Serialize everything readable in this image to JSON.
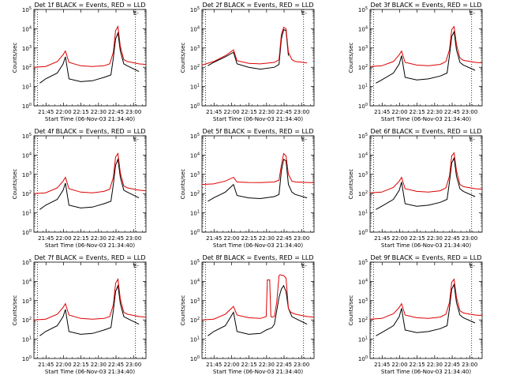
{
  "figure": {
    "panels": [
      {
        "title": "Det 1f BLACK = Events, RED = LLD"
      },
      {
        "title": "Det 2f BLACK = Events, RED = LLD"
      },
      {
        "title": "Det 3f BLACK = Events, RED = LLD"
      },
      {
        "title": "Det 4f BLACK = Events, RED = LLD"
      },
      {
        "title": "Det 5f BLACK = Events, RED = LLD"
      },
      {
        "title": "Det 6f BLACK = Events, RED = LLD"
      },
      {
        "title": "Det 7f BLACK = Events, RED = LLD"
      },
      {
        "title": "Det 8f BLACK = Events, RED = LLD"
      },
      {
        "title": "Det 9f BLACK = Events, RED = LLD"
      }
    ],
    "xlabel": "Start Time (06-Nov-03 21:34:40)",
    "ylabel": "Counts/sec",
    "corner_mark": "E-"
  },
  "chart_data": {
    "type": "line",
    "layout_grid": "3x3",
    "x_tick_labels": [
      "21:45",
      "22:00",
      "22:15",
      "22:30",
      "22:45",
      "23:00"
    ],
    "x_tick_minutes": [
      10.33,
      25.33,
      40.33,
      55.33,
      70.33,
      85.33
    ],
    "x_range_minutes": [
      0,
      96
    ],
    "y_scale": "log",
    "y_range": [
      1,
      100000
    ],
    "y_tick_labels": [
      "10^0",
      "10^1",
      "10^2",
      "10^3",
      "10^4",
      "10^5"
    ],
    "vertical_markers_minutes": [
      3,
      87
    ],
    "colors": {
      "events": "#000000",
      "lld": "#dd0000"
    },
    "panels": [
      {
        "title": "Det 1f BLACK = Events, RED = LLD",
        "lld": {
          "x": [
            0,
            10,
            20,
            25,
            27,
            30,
            40,
            50,
            60,
            65,
            68,
            70,
            72,
            74,
            77,
            80,
            90,
            96
          ],
          "y": [
            100,
            110,
            200,
            450,
            700,
            180,
            120,
            110,
            120,
            150,
            600,
            8000,
            13000,
            1200,
            250,
            200,
            150,
            140
          ]
        },
        "events": {
          "x": [
            0,
            5,
            10,
            20,
            25,
            27,
            30,
            40,
            50,
            60,
            66,
            68,
            70,
            72,
            74,
            77,
            80,
            90,
            96
          ],
          "y": [
            null,
            15,
            25,
            50,
            150,
            350,
            25,
            18,
            20,
            30,
            40,
            300,
            3000,
            6000,
            700,
            150,
            120,
            60,
            null
          ]
        }
      },
      {
        "title": "Det 2f BLACK = Events, RED = LLD",
        "lld": {
          "x": [
            0,
            10,
            20,
            27,
            30,
            40,
            50,
            62,
            66,
            68,
            70,
            72,
            74,
            77,
            80,
            90,
            96
          ],
          "y": [
            130,
            200,
            400,
            800,
            220,
            160,
            150,
            180,
            250,
            5000,
            12000,
            10000,
            600,
            250,
            200,
            170,
            null
          ]
        },
        "events": {
          "x": [
            0,
            5,
            10,
            20,
            27,
            30,
            40,
            50,
            62,
            66,
            68,
            70,
            72,
            74,
            77,
            80,
            90,
            96
          ],
          "y": [
            null,
            120,
            180,
            350,
            600,
            150,
            100,
            80,
            100,
            140,
            3000,
            9000,
            8000,
            400,
            null,
            null,
            null,
            null
          ]
        }
      },
      {
        "title": "Det 3f BLACK = Events, RED = LLD",
        "lld": {
          "x": [
            0,
            10,
            20,
            25,
            27,
            30,
            40,
            50,
            60,
            65,
            68,
            70,
            72,
            74,
            77,
            80,
            90,
            96
          ],
          "y": [
            110,
            120,
            200,
            450,
            700,
            180,
            130,
            120,
            140,
            200,
            800,
            9000,
            13000,
            1500,
            300,
            230,
            180,
            170
          ]
        },
        "events": {
          "x": [
            0,
            5,
            10,
            20,
            25,
            27,
            30,
            40,
            50,
            60,
            66,
            68,
            70,
            72,
            74,
            77,
            80,
            90,
            96
          ],
          "y": [
            null,
            15,
            22,
            50,
            150,
            400,
            30,
            22,
            25,
            35,
            50,
            400,
            4000,
            7000,
            800,
            180,
            130,
            70,
            null
          ]
        }
      },
      {
        "title": "Det 4f BLACK = Events, RED = LLD",
        "lld": {
          "x": [
            0,
            10,
            20,
            25,
            27,
            30,
            40,
            50,
            60,
            65,
            68,
            70,
            72,
            74,
            77,
            80,
            90,
            96
          ],
          "y": [
            100,
            110,
            200,
            450,
            700,
            180,
            120,
            110,
            130,
            170,
            700,
            8000,
            12000,
            1200,
            250,
            200,
            150,
            140
          ]
        },
        "events": {
          "x": [
            0,
            5,
            10,
            20,
            25,
            27,
            30,
            40,
            50,
            60,
            66,
            68,
            70,
            72,
            74,
            77,
            80,
            90,
            96
          ],
          "y": [
            null,
            15,
            25,
            50,
            150,
            350,
            25,
            18,
            20,
            30,
            40,
            300,
            3000,
            6000,
            700,
            150,
            120,
            60,
            null
          ]
        }
      },
      {
        "title": "Det 5f BLACK = Events, RED = LLD",
        "lld": {
          "x": [
            0,
            10,
            20,
            27,
            30,
            40,
            50,
            62,
            66,
            68,
            70,
            72,
            74,
            77,
            80,
            90,
            96
          ],
          "y": [
            300,
            320,
            450,
            700,
            400,
            380,
            370,
            400,
            500,
            3000,
            12000,
            9000,
            1000,
            450,
            400,
            380,
            370
          ]
        },
        "events": {
          "x": [
            0,
            5,
            10,
            20,
            27,
            30,
            40,
            50,
            62,
            66,
            68,
            70,
            72,
            74,
            77,
            80,
            90,
            96
          ],
          "y": [
            null,
            40,
            60,
            120,
            300,
            80,
            60,
            55,
            70,
            90,
            1500,
            6000,
            5000,
            300,
            120,
            90,
            60,
            null
          ]
        }
      },
      {
        "title": "Det 6f BLACK = Events, RED = LLD",
        "lld": {
          "x": [
            0,
            10,
            20,
            25,
            27,
            30,
            40,
            50,
            60,
            65,
            68,
            70,
            72,
            74,
            77,
            80,
            90,
            96
          ],
          "y": [
            110,
            120,
            210,
            450,
            700,
            180,
            130,
            120,
            140,
            200,
            800,
            9000,
            13000,
            1500,
            300,
            230,
            180,
            170
          ]
        },
        "events": {
          "x": [
            0,
            5,
            10,
            20,
            25,
            27,
            30,
            40,
            50,
            60,
            66,
            68,
            70,
            72,
            74,
            77,
            80,
            90,
            96
          ],
          "y": [
            null,
            15,
            22,
            50,
            150,
            400,
            30,
            22,
            25,
            35,
            50,
            400,
            4000,
            7000,
            800,
            180,
            130,
            70,
            null
          ]
        }
      },
      {
        "title": "Det 7f BLACK = Events, RED = LLD",
        "lld": {
          "x": [
            0,
            10,
            20,
            25,
            27,
            30,
            40,
            50,
            60,
            65,
            68,
            70,
            72,
            74,
            77,
            80,
            90,
            96
          ],
          "y": [
            100,
            110,
            200,
            450,
            700,
            180,
            120,
            110,
            120,
            150,
            600,
            8000,
            13000,
            1200,
            250,
            200,
            150,
            140
          ]
        },
        "events": {
          "x": [
            0,
            5,
            10,
            20,
            25,
            27,
            30,
            40,
            50,
            60,
            66,
            68,
            70,
            72,
            74,
            77,
            80,
            90,
            96
          ],
          "y": [
            null,
            15,
            25,
            50,
            150,
            350,
            25,
            18,
            20,
            30,
            40,
            300,
            3000,
            6000,
            700,
            150,
            120,
            60,
            null
          ]
        }
      },
      {
        "title": "Det 8f BLACK = Events, RED = LLD",
        "lld": {
          "x": [
            0,
            10,
            20,
            27,
            30,
            40,
            50,
            55,
            56,
            58,
            59,
            60,
            62,
            64,
            66,
            67,
            70,
            72,
            74,
            76,
            80,
            90,
            96
          ],
          "y": [
            100,
            110,
            200,
            500,
            180,
            130,
            120,
            150,
            12000,
            12000,
            150,
            140,
            150,
            800,
            20000,
            22000,
            20000,
            15000,
            400,
            250,
            200,
            150,
            140
          ]
        },
        "events": {
          "x": [
            0,
            5,
            10,
            20,
            27,
            30,
            40,
            50,
            55,
            60,
            62,
            64,
            66,
            68,
            70,
            72,
            74,
            77,
            80,
            90,
            96
          ],
          "y": [
            null,
            15,
            25,
            50,
            250,
            25,
            18,
            20,
            30,
            40,
            60,
            300,
            1500,
            4000,
            6000,
            3000,
            400,
            150,
            120,
            60,
            null
          ]
        }
      },
      {
        "title": "Det 9f BLACK = Events, RED = LLD",
        "lld": {
          "x": [
            0,
            10,
            20,
            25,
            27,
            30,
            40,
            50,
            60,
            65,
            68,
            70,
            72,
            74,
            77,
            80,
            90,
            96
          ],
          "y": [
            110,
            120,
            210,
            450,
            700,
            180,
            130,
            120,
            140,
            200,
            800,
            9000,
            13000,
            1500,
            300,
            230,
            180,
            170
          ]
        },
        "events": {
          "x": [
            0,
            5,
            10,
            20,
            25,
            27,
            30,
            40,
            50,
            60,
            66,
            68,
            70,
            72,
            74,
            77,
            80,
            90,
            96
          ],
          "y": [
            null,
            15,
            22,
            50,
            150,
            400,
            30,
            22,
            25,
            35,
            50,
            400,
            4000,
            7000,
            800,
            180,
            130,
            70,
            null
          ]
        }
      }
    ]
  }
}
